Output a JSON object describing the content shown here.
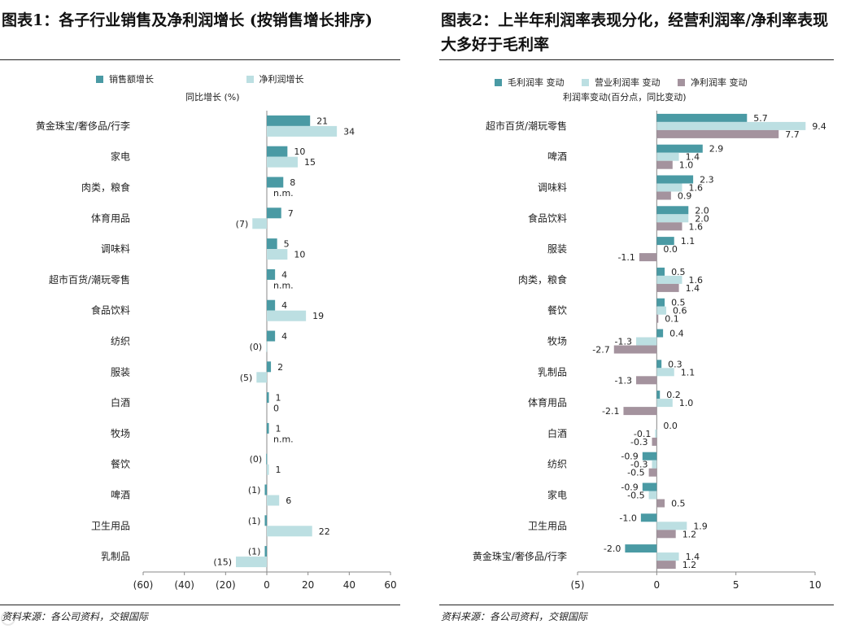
{
  "left": {
    "title": "图表1：各子行业销售及净利润增长 (按销售增长排序)",
    "source": "资料来源：各公司资料，交银国际",
    "chart_data": {
      "type": "bar",
      "orientation": "horizontal",
      "title": "图表1：各子行业销售及净利润增长 (按销售增长排序)",
      "xlabel": "同比增长 (%)",
      "xlim": [
        -60,
        60
      ],
      "xticks": [
        -60,
        -40,
        -20,
        0,
        20,
        40,
        60
      ],
      "xtick_labels": [
        "(60)",
        "(40)",
        "(20)",
        "0",
        "20",
        "40",
        "60"
      ],
      "categories": [
        "黄金珠宝/奢侈品/行李",
        "家电",
        "肉类，粮食",
        "体育用品",
        "调味料",
        "超市百货/潮玩零售",
        "食品饮料",
        "纺织",
        "服装",
        "白酒",
        "牧场",
        "餐饮",
        "啤酒",
        "卫生用品",
        "乳制品"
      ],
      "series": [
        {
          "name": "销售额增长",
          "color": "#4a9aa4",
          "values": [
            21,
            10,
            8,
            7,
            5,
            4,
            4,
            4,
            2,
            1,
            1,
            -0.3,
            -1,
            -1,
            -1
          ],
          "labels": [
            "21",
            "10",
            "8",
            "7",
            "5",
            "4",
            "4",
            "4",
            "2",
            "1",
            "1",
            "(0)",
            "(1)",
            "(1)",
            "(1)"
          ]
        },
        {
          "name": "净利润增长",
          "color": "#bcdfe2",
          "values": [
            34,
            15,
            null,
            -7,
            10,
            null,
            19,
            -0.3,
            -5,
            0,
            null,
            1,
            6,
            22,
            -15
          ],
          "labels": [
            "34",
            "15",
            "n.m.",
            "(7)",
            "10",
            "n.m.",
            "19",
            "(0)",
            "(5)",
            "0",
            "n.m.",
            "1",
            "6",
            "22",
            "(15)"
          ]
        }
      ]
    }
  },
  "right": {
    "title": "图表2：上半年利润率表现分化，经营利润率/净利率表现大多好于毛利率",
    "source": "资料来源：各公司资料，交银国际",
    "chart_data": {
      "type": "bar",
      "orientation": "horizontal",
      "title": "图表2：上半年利润率表现分化，经营利润率/净利率表现大多好于毛利率",
      "xlabel": "利润率变动(百分点，同比变动)",
      "xlim": [
        -5,
        10
      ],
      "xticks": [
        -5,
        0,
        5,
        10
      ],
      "xtick_labels": [
        "(5)",
        "0",
        "5",
        "10"
      ],
      "categories": [
        "超市百货/潮玩零售",
        "啤酒",
        "调味料",
        "食品饮料",
        "服装",
        "肉类，粮食",
        "餐饮",
        "牧场",
        "乳制品",
        "体育用品",
        "白酒",
        "纺织",
        "家电",
        "卫生用品",
        "黄金珠宝/奢侈品/行李"
      ],
      "series": [
        {
          "name": "毛利润率 变动",
          "color": "#4a9aa4",
          "values": [
            5.7,
            2.9,
            2.3,
            2.0,
            1.1,
            0.5,
            0.5,
            0.4,
            0.3,
            0.2,
            0.0,
            -0.9,
            -0.9,
            -1.0,
            -2.0
          ],
          "labels": [
            "5.7",
            "2.9",
            "2.3",
            "2.0",
            "1.1",
            "0.5",
            "0.5",
            "0.4",
            "0.3",
            "0.2",
            "0.0",
            "-0.9",
            "-0.9",
            "-1.0",
            "-2.0"
          ]
        },
        {
          "name": "营业利润率 变动",
          "color": "#bcdfe2",
          "values": [
            9.4,
            1.4,
            1.6,
            2.0,
            0.0,
            1.6,
            0.6,
            -1.3,
            1.1,
            1.0,
            -0.1,
            -0.3,
            -0.5,
            1.9,
            1.4
          ],
          "labels": [
            "9.4",
            "1.4",
            "1.6",
            "2.0",
            "0.0",
            "1.6",
            "0.6",
            "-1.3",
            "1.1",
            "1.0",
            "-0.1",
            "-0.3",
            "-0.5",
            "1.9",
            "1.4"
          ]
        },
        {
          "name": "净利润率 变动",
          "color": "#a4939e",
          "values": [
            7.7,
            1.0,
            0.9,
            1.6,
            -1.1,
            1.4,
            0.1,
            -2.7,
            -1.3,
            -2.1,
            -0.3,
            -0.5,
            0.5,
            1.2,
            1.2
          ],
          "labels": [
            "7.7",
            "1.0",
            "0.9",
            "1.6",
            "-1.1",
            "1.4",
            "0.1",
            "-2.7",
            "-1.3",
            "-2.1",
            "-0.3",
            "-0.5",
            "0.5",
            "1.2",
            "1.2"
          ]
        }
      ]
    }
  }
}
